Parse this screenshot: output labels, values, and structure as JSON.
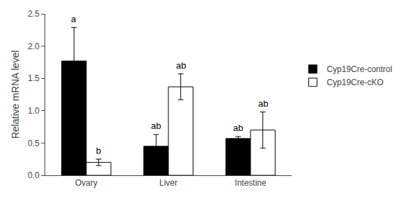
{
  "chart_data": {
    "type": "bar",
    "categories": [
      "Ovary",
      "Liver",
      "Intestine"
    ],
    "series": [
      {
        "name": "Cyp19Cre-control",
        "color": "#000000",
        "values": [
          1.77,
          0.45,
          0.57
        ],
        "errors": [
          0.52,
          0.18,
          0.03
        ],
        "annotations": [
          "a",
          "ab",
          "ab"
        ]
      },
      {
        "name": "Cyp19Cre-cKO",
        "color": "#ffffff",
        "values": [
          0.2,
          1.37,
          0.7
        ],
        "errors": [
          0.05,
          0.2,
          0.28
        ],
        "annotations": [
          "b",
          "ab",
          "ab"
        ]
      }
    ],
    "ylabel": "Relative mRNA level",
    "ylim": [
      0,
      2.5
    ],
    "yticks": [
      {
        "value": 0,
        "label": "0.0"
      },
      0.5,
      {
        "value": 1.0,
        "label": "1.0"
      },
      1.5,
      {
        "value": 2.0,
        "label": "2.0"
      },
      2.5
    ],
    "grid": false,
    "legend": "right"
  }
}
